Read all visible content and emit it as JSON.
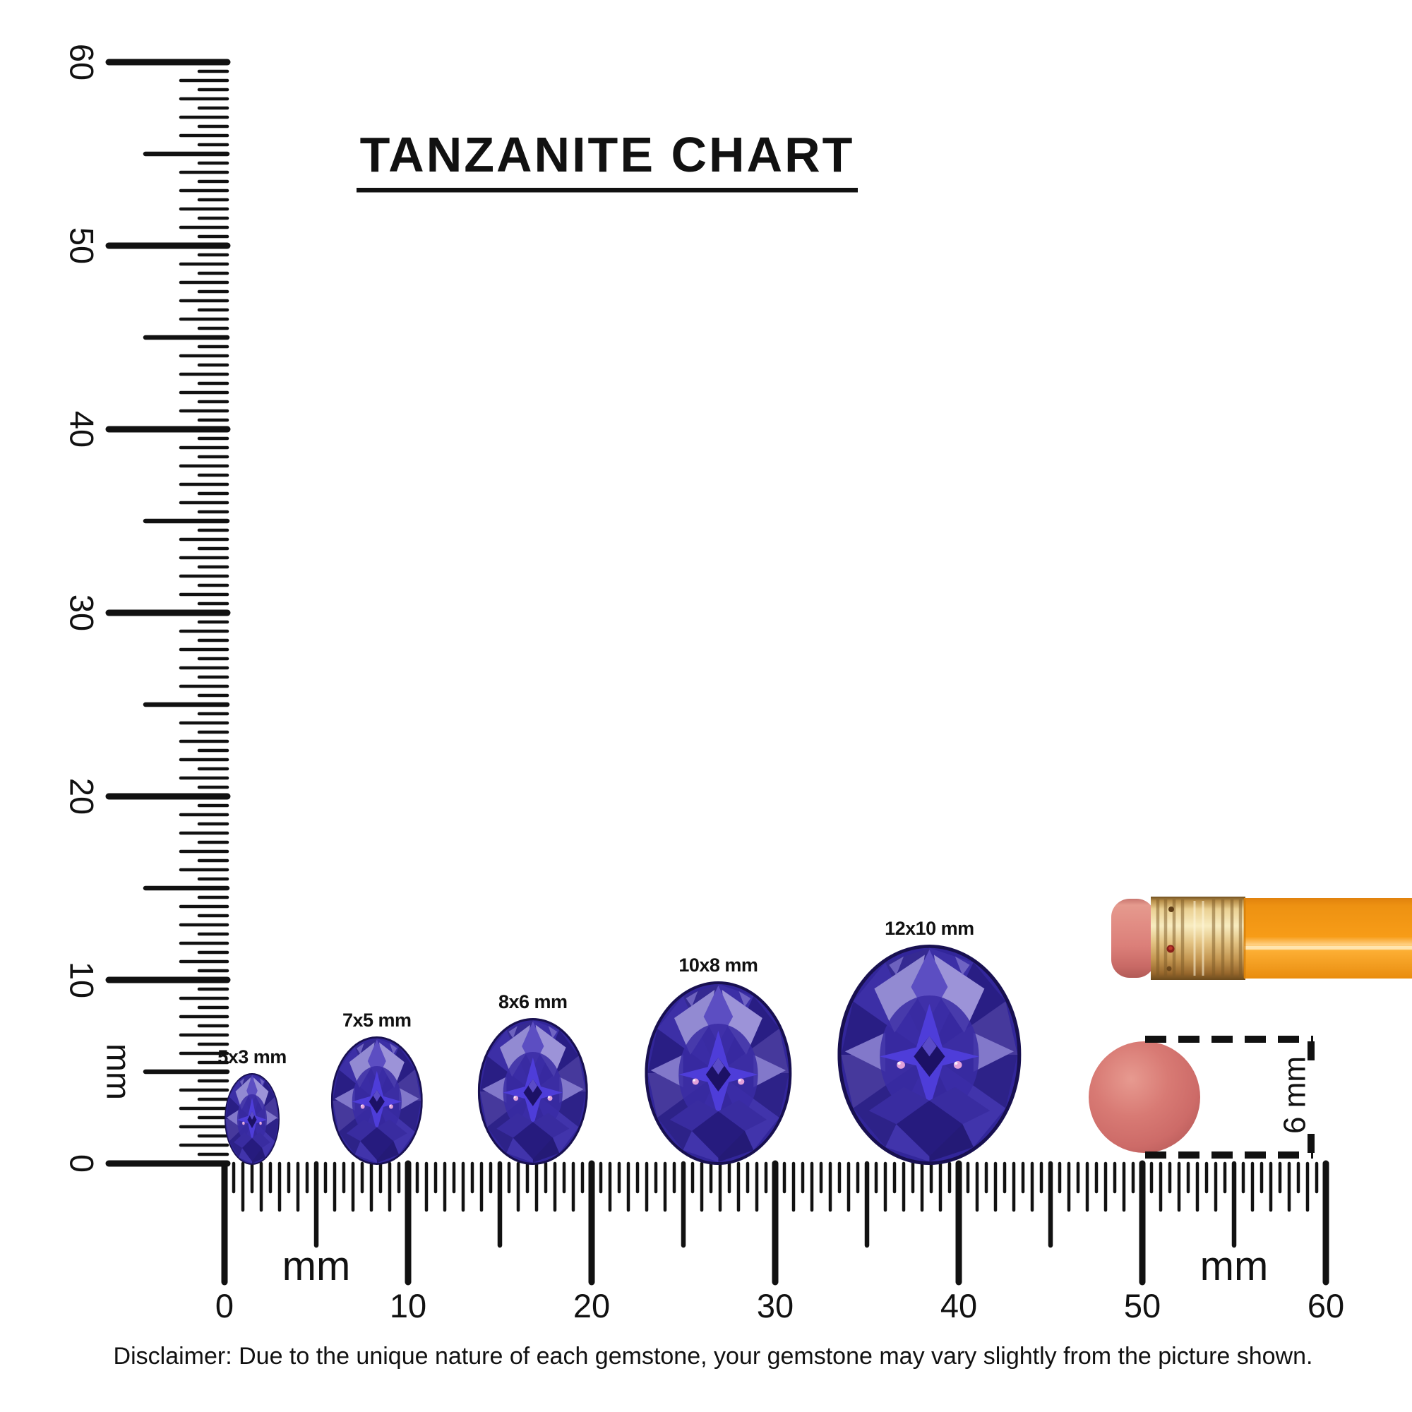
{
  "title": {
    "text": "TANZANITE CHART"
  },
  "disclaimer": {
    "text": "Disclaimer: Due to the unique nature of each gemstone, your gemstone may vary slightly from the picture shown."
  },
  "chart_data": {
    "type": "size-comparison-chart",
    "gemstone": "Tanzanite",
    "cut_shape": "oval",
    "unit": "mm",
    "gem_sizes_mm": [
      [
        5,
        3
      ],
      [
        7,
        5
      ],
      [
        8,
        6
      ],
      [
        10,
        8
      ],
      [
        12,
        10
      ]
    ],
    "gem_size_labels": [
      "5x3 mm",
      "7x5 mm",
      "8x6 mm",
      "10x8 mm",
      "12x10 mm"
    ],
    "ruler_range_mm": [
      0,
      60
    ],
    "ruler_tick_step_mm": 0.5,
    "reference_object_diameter_mm": 6
  },
  "rulers": {
    "unit_label": "mm",
    "vertical": {
      "min": 0,
      "max": 60,
      "tick_step": 0.5,
      "number_labels": [
        "0",
        "10",
        "20",
        "30",
        "40",
        "50",
        "60"
      ],
      "number_values": [
        0,
        10,
        20,
        30,
        40,
        50,
        60
      ],
      "unit_label_at_mm": 5
    },
    "horizontal": {
      "min": 0,
      "max": 60,
      "tick_step": 0.5,
      "number_labels": [
        "0",
        "10",
        "20",
        "30",
        "40",
        "50",
        "60"
      ],
      "number_values": [
        0,
        10,
        20,
        30,
        40,
        50,
        60
      ],
      "unit_label_at_mm": [
        5,
        55
      ]
    }
  },
  "gems": [
    {
      "label": "5x3 mm",
      "length_mm": 5,
      "width_mm": 3,
      "center_x_mm": 1.5
    },
    {
      "label": "7x5 mm",
      "length_mm": 7,
      "width_mm": 5,
      "center_x_mm": 8.3
    },
    {
      "label": "8x6 mm",
      "length_mm": 8,
      "width_mm": 6,
      "center_x_mm": 16.8
    },
    {
      "label": "10x8 mm",
      "length_mm": 10,
      "width_mm": 8,
      "center_x_mm": 26.9
    },
    {
      "label": "12x10 mm",
      "length_mm": 12,
      "width_mm": 10,
      "center_x_mm": 38.4
    }
  ],
  "reference_objects": {
    "pencil": {
      "description": "pencil with pink eraser and gold ferrule"
    },
    "round_eraser": {
      "diameter_mm": 6,
      "diameter_label": "6 mm",
      "center_x_mm": 50.1,
      "center_y_mm": 3.6
    }
  },
  "colors": {
    "ink": "#111111",
    "gem_dark": "#181050",
    "gem_mid": "#32269a",
    "gem_light": "#9187d0",
    "gem_bright": "#4e3dd9",
    "pencil_body": "#f89d16",
    "pencil_ferrule": "#e0bd78",
    "pencil_eraser": "#df837c",
    "round_eraser": "#d4716d"
  }
}
